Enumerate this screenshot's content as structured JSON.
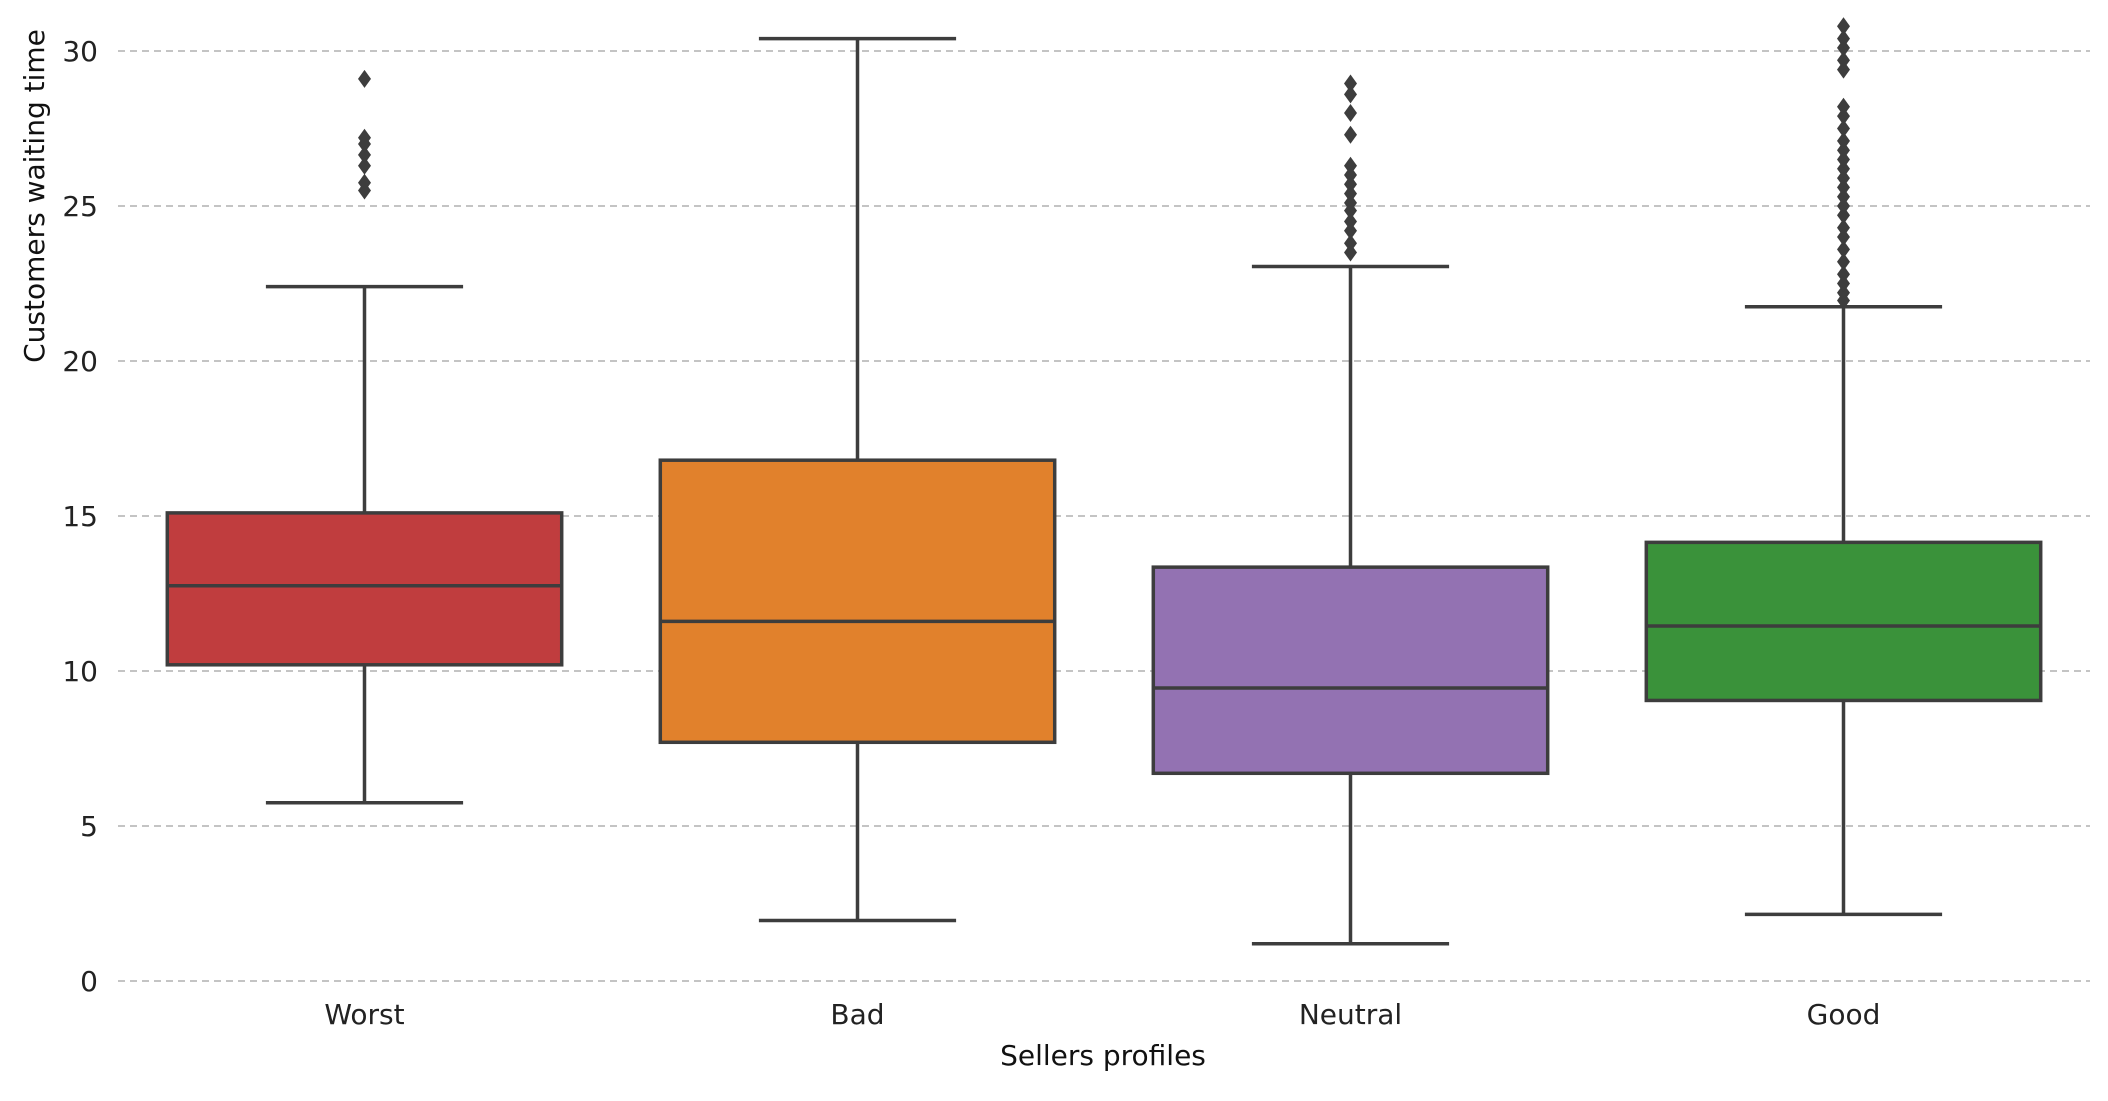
{
  "chart_data": {
    "type": "box",
    "title": "",
    "xlabel": "Sellers profiles",
    "ylabel": "Customers waiting time",
    "ylim": [
      0,
      30.5
    ],
    "yticks": [
      0,
      5,
      10,
      15,
      20,
      25,
      30
    ],
    "grid": "horizontal dashed",
    "legend": "none",
    "categories": [
      "Worst",
      "Bad",
      "Neutral",
      "Good"
    ],
    "series": [
      {
        "category": "Worst",
        "color": "#c03d3e",
        "whisker_low": 5.75,
        "q1": 10.2,
        "median": 12.75,
        "q3": 15.1,
        "whisker_high": 22.4,
        "outliers": [
          25.5,
          25.75,
          26.3,
          26.65,
          27.0,
          27.2,
          29.1
        ]
      },
      {
        "category": "Bad",
        "color": "#e1812c",
        "whisker_low": 1.95,
        "q1": 7.7,
        "median": 11.6,
        "q3": 16.8,
        "whisker_high": 30.4,
        "outliers": []
      },
      {
        "category": "Neutral",
        "color": "#9372b2",
        "whisker_low": 1.2,
        "q1": 6.7,
        "median": 9.45,
        "q3": 13.35,
        "whisker_high": 23.05,
        "outliers": [
          23.5,
          23.8,
          24.2,
          24.5,
          24.85,
          25.1,
          25.4,
          25.7,
          26.0,
          26.3,
          27.3,
          28.0,
          28.6,
          28.95
        ]
      },
      {
        "category": "Good",
        "color": "#3a923a",
        "whisker_low": 2.15,
        "q1": 9.05,
        "median": 11.45,
        "q3": 14.15,
        "whisker_high": 21.75,
        "outliers": [
          21.95,
          22.2,
          22.5,
          22.8,
          23.2,
          23.6,
          24.0,
          24.3,
          24.7,
          25.0,
          25.3,
          25.6,
          25.9,
          26.2,
          26.5,
          26.8,
          27.1,
          27.5,
          27.9,
          28.2,
          29.4,
          29.7,
          30.1,
          30.4,
          30.8
        ]
      }
    ]
  }
}
